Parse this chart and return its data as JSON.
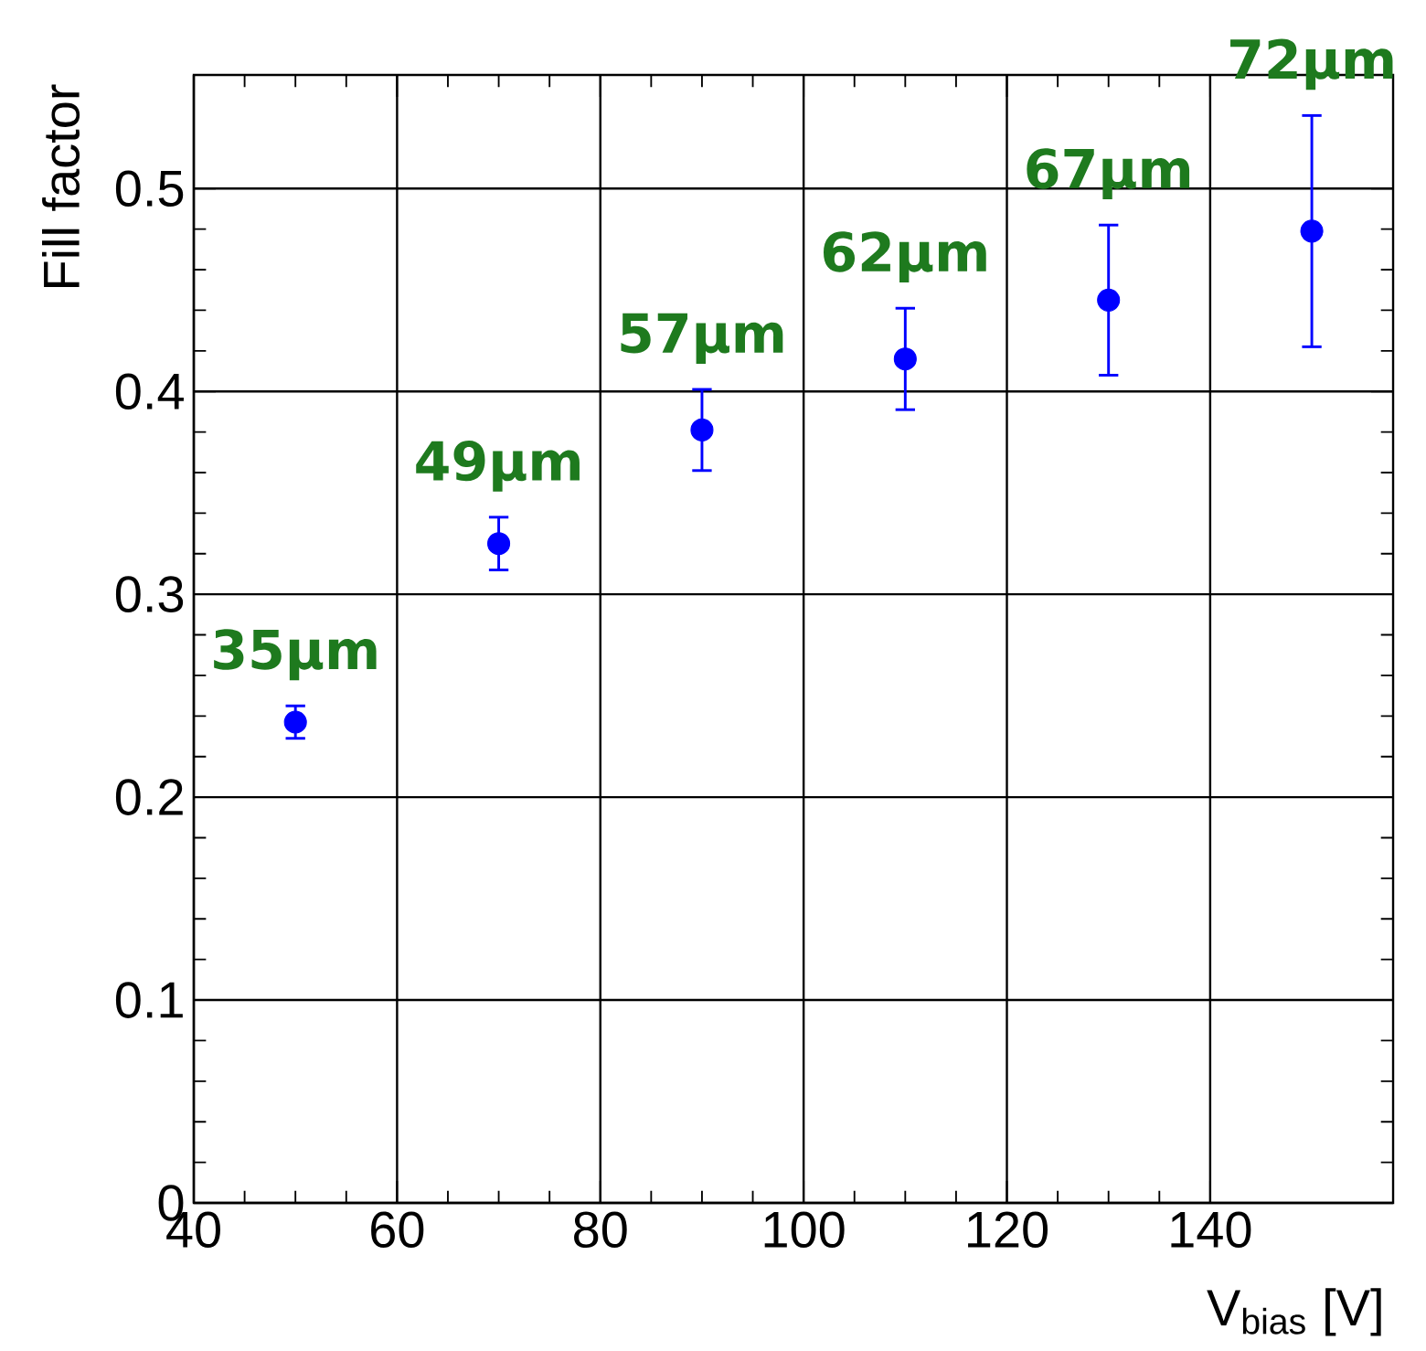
{
  "chart_data": {
    "type": "scatter",
    "xlabel": "V$_{bias}$ [V]",
    "ylabel": "Fill factor",
    "x": [
      50,
      70,
      90,
      110,
      130,
      150
    ],
    "series": [
      {
        "color": "#0000ff",
        "values": [
          0.237,
          0.325,
          0.381,
          0.416,
          0.445,
          0.479
        ],
        "errors": [
          0.008,
          0.013,
          0.02,
          0.025,
          0.037,
          0.057
        ]
      }
    ],
    "xlim": [
      40,
      158
    ],
    "ylim": [
      0,
      0.556
    ],
    "xticks": [
      40,
      60,
      80,
      100,
      120,
      140
    ],
    "yticks": [
      0,
      0.1,
      0.2,
      0.3,
      0.4,
      0.5
    ],
    "grid": true,
    "marker": "circle",
    "annotations": [
      {
        "text": "35µm",
        "x": 50,
        "y": 0.237
      },
      {
        "text": "49µm",
        "x": 70,
        "y": 0.325
      },
      {
        "text": "57µm",
        "x": 90,
        "y": 0.381
      },
      {
        "text": "62µm",
        "x": 110,
        "y": 0.416
      },
      {
        "text": "67µm",
        "x": 130,
        "y": 0.445
      },
      {
        "text": "72µm",
        "x": 150,
        "y": 0.479
      }
    ]
  }
}
